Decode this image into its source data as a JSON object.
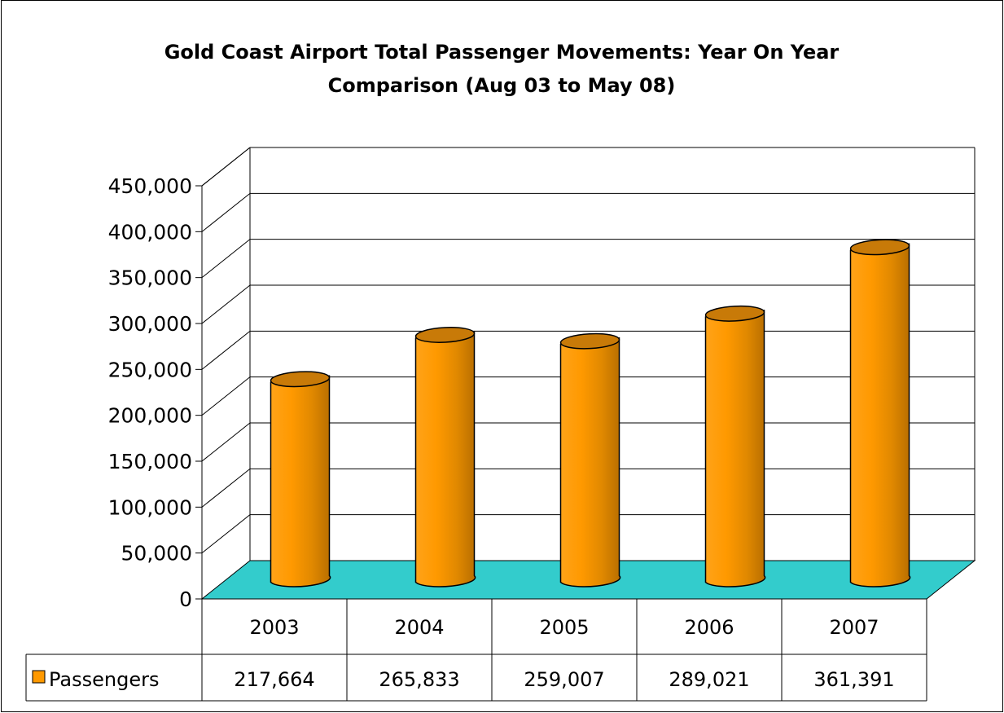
{
  "chart_data": {
    "type": "bar",
    "title_lines": [
      "Gold Coast Airport Total Passenger Movements: Year On Year",
      "Comparison (Aug 03 to May 08)"
    ],
    "categories": [
      "2003",
      "2004",
      "2005",
      "2006",
      "2007"
    ],
    "series": [
      {
        "name": "Passengers",
        "values": [
          217664,
          265833,
          259007,
          289021,
          361391
        ],
        "value_labels": [
          "217,664",
          "265,833",
          "259,007",
          "289,021",
          "361,391"
        ],
        "color": "#ff9900"
      }
    ],
    "ylim": [
      0,
      450000
    ],
    "y_ticks": [
      0,
      50000,
      100000,
      150000,
      200000,
      250000,
      300000,
      350000,
      400000,
      450000
    ],
    "y_tick_labels": [
      "0",
      "50,000",
      "100,000",
      "150,000",
      "200,000",
      "250,000",
      "300,000",
      "350,000",
      "400,000",
      "450,000"
    ],
    "grid": true,
    "style": "3d-cylinder",
    "floor_color": "#33cccc",
    "data_table": true,
    "legend": "data-table"
  }
}
